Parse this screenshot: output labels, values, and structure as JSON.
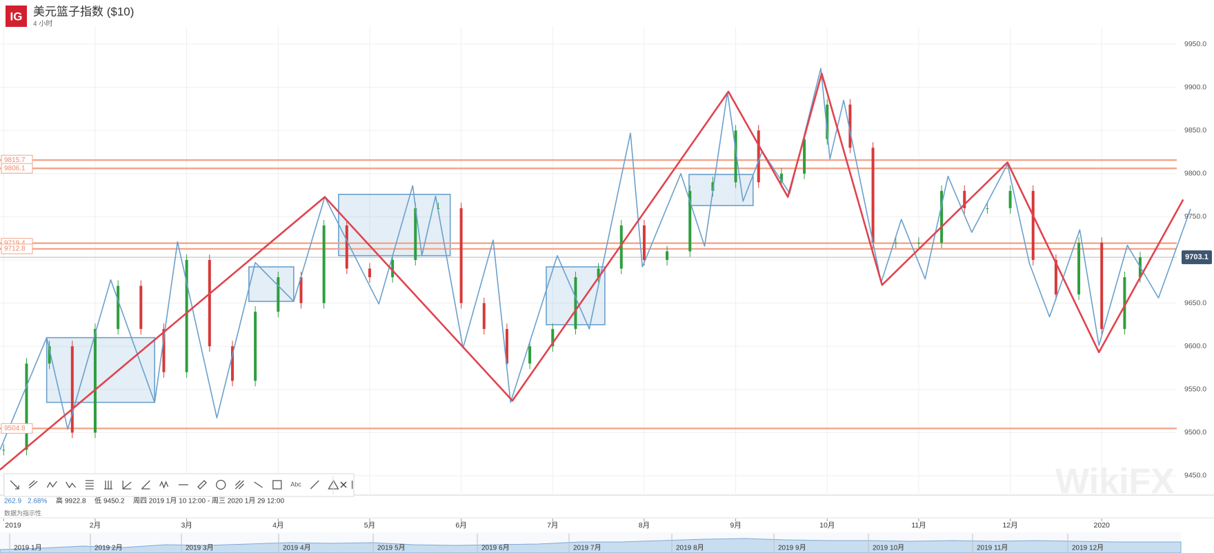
{
  "header": {
    "logo": "IG",
    "title": "美元篮子指数 ($10)",
    "interval": "4 小时",
    "watermark": "WikiFX"
  },
  "chart_data": {
    "type": "line",
    "xlim": [
      -0.04,
      12.82
    ],
    "xticks": [
      {
        "value": 0,
        "label": "2019"
      },
      {
        "value": 1,
        "label": "2月"
      },
      {
        "value": 2,
        "label": "3月"
      },
      {
        "value": 3,
        "label": "4月"
      },
      {
        "value": 4,
        "label": "5月"
      },
      {
        "value": 5,
        "label": "6月"
      },
      {
        "value": 6,
        "label": "7月"
      },
      {
        "value": 7,
        "label": "8月"
      },
      {
        "value": 8,
        "label": "9月"
      },
      {
        "value": 9,
        "label": "10月"
      },
      {
        "value": 10,
        "label": "11月"
      },
      {
        "value": 11,
        "label": "12月"
      },
      {
        "value": 12,
        "label": "2020"
      }
    ],
    "ylim": [
      9430,
      9970
    ],
    "yticks": [
      {
        "value": 9450,
        "label": "9450.0"
      },
      {
        "value": 9500,
        "label": "9500.0"
      },
      {
        "value": 9550,
        "label": "9550.0"
      },
      {
        "value": 9600,
        "label": "9600.0"
      },
      {
        "value": 9650,
        "label": "9650.0"
      },
      {
        "value": 9700,
        "label": "9700.0"
      },
      {
        "value": 9750,
        "label": "9750.0"
      },
      {
        "value": 9800,
        "label": "9800.0"
      },
      {
        "value": 9850,
        "label": "9850.0"
      },
      {
        "value": 9900,
        "label": "9900.0"
      },
      {
        "value": 9950,
        "label": "9950.0"
      }
    ],
    "grid": true,
    "series": [
      {
        "style": "candle",
        "up_color": "#2e9e3e",
        "down_color": "#d63a3a",
        "x": [
          0,
          0.25,
          0.5,
          0.75,
          1,
          1.25,
          1.5,
          1.75,
          2,
          2.25,
          2.5,
          2.75,
          3,
          3.25,
          3.5,
          3.75,
          4,
          4.25,
          4.5,
          4.75,
          5,
          5.25,
          5.5,
          5.75,
          6,
          6.25,
          6.5,
          6.75,
          7,
          7.25,
          7.5,
          7.75,
          8,
          8.25,
          8.5,
          8.75,
          9,
          9.25,
          9.5,
          9.75,
          10,
          10.25,
          10.5,
          10.75,
          11,
          11.25,
          11.5,
          11.75,
          12,
          12.25,
          12.42
        ],
        "values": [
          9480,
          9580,
          9600,
          9500,
          9620,
          9670,
          9620,
          9570,
          9700,
          9600,
          9560,
          9640,
          9680,
          9650,
          9740,
          9690,
          9680,
          9700,
          9760,
          9760,
          9650,
          9620,
          9580,
          9600,
          9620,
          9680,
          9690,
          9740,
          9700,
          9710,
          9780,
          9790,
          9850,
          9790,
          9800,
          9840,
          9880,
          9830,
          9720,
          9720,
          9720,
          9780,
          9760,
          9760,
          9780,
          9700,
          9660,
          9720,
          9620,
          9680,
          9703.1
        ]
      },
      {
        "style": "line",
        "color": "#6aa0cc",
        "width": 1.6,
        "x": [
          -0.04,
          0.47,
          0.7,
          1.17,
          1.65,
          1.9,
          2.33,
          2.75,
          3.17,
          3.51,
          4.1,
          4.47,
          4.57,
          4.72,
          5.02,
          5.35,
          5.54,
          6.05,
          6.4,
          6.85,
          6.98,
          7.4,
          7.66,
          7.91,
          8.08,
          8.29,
          8.59,
          8.93,
          9.03,
          9.18,
          9.59,
          9.81,
          10.07,
          10.32,
          10.58,
          10.97,
          11.21,
          11.43,
          11.76,
          11.97,
          12.28,
          12.62,
          12.97
        ],
        "values": [
          9480,
          9610,
          9504,
          9677,
          9535,
          9721,
          9517,
          9697,
          9652,
          9773,
          9649,
          9786,
          9705,
          9774,
          9598,
          9723,
          9535,
          9705,
          9620,
          9847,
          9692,
          9800,
          9716,
          9894,
          9768,
          9826,
          9777,
          9922,
          9817,
          9885,
          9674,
          9747,
          9678,
          9797,
          9732,
          9811,
          9696,
          9634,
          9735,
          9601,
          9717,
          9656,
          9759
        ]
      },
      {
        "style": "line",
        "color": "#e0434e",
        "width": 2.6,
        "x": [
          -0.04,
          3.51,
          5.56,
          7.92,
          8.57,
          8.94,
          9.6,
          10.97,
          11.97,
          12.89
        ],
        "values": [
          9457,
          9773,
          9537,
          9895,
          9773,
          9916,
          9671,
          9813,
          9593,
          9770
        ]
      }
    ],
    "zones": [
      {
        "x": [
          0.47,
          1.65
        ],
        "y": [
          9535,
          9610
        ]
      },
      {
        "x": [
          2.68,
          3.17
        ],
        "y": [
          9652,
          9692
        ]
      },
      {
        "x": [
          3.66,
          4.88
        ],
        "y": [
          9705,
          9776
        ]
      },
      {
        "x": [
          5.93,
          6.57
        ],
        "y": [
          9625,
          9692
        ]
      },
      {
        "x": [
          7.49,
          8.19
        ],
        "y": [
          9763,
          9799
        ]
      }
    ],
    "zone_color": "#6aa0cc",
    "levels": [
      9815.7,
      9806.1,
      9719.4,
      9712.8,
      9504.8
    ],
    "level_color": "#f2a58a",
    "last": 9703.1,
    "last_color": "#3d5570"
  },
  "footer": {
    "change": "262.9",
    "change_pct": "2.68%",
    "high_label": "高",
    "high": "9922.8",
    "low_label": "低",
    "low": "9450.2",
    "range": "周四 2019 1月 10 12:00 - 周三 2020 1月 29 12:00",
    "note": "数据为指示性"
  },
  "navigator": {
    "labels": [
      "2019 1月",
      "2019 2月",
      "2019 3月",
      "2019 4月",
      "2019 5月",
      "2019 6月",
      "2019 7月",
      "2019 8月",
      "2019 9月",
      "2019 10月",
      "2019 11月",
      "2019 12月"
    ]
  },
  "toolbar": {
    "text_tool": "Abc"
  }
}
